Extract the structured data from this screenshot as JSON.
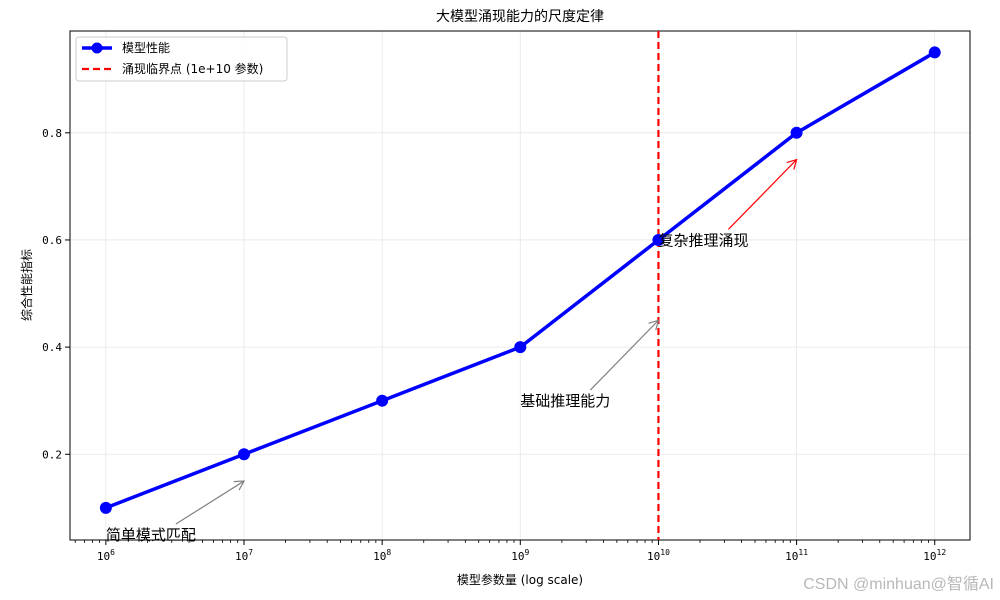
{
  "chart_data": {
    "type": "line",
    "title": "大模型涌现能力的尺度定律",
    "xlabel": "模型参数量 (log scale)",
    "ylabel": "综合性能指标",
    "x_scale": "log",
    "x": [
      1000000,
      10000000,
      100000000,
      1000000000,
      10000000000,
      100000000000,
      1000000000000
    ],
    "x_ticks": [
      {
        "base": "10",
        "exp": "6"
      },
      {
        "base": "10",
        "exp": "7"
      },
      {
        "base": "10",
        "exp": "8"
      },
      {
        "base": "10",
        "exp": "9"
      },
      {
        "base": "10",
        "exp": "10"
      },
      {
        "base": "10",
        "exp": "11"
      },
      {
        "base": "10",
        "exp": "12"
      }
    ],
    "y_ticks": [
      "0.2",
      "0.4",
      "0.6",
      "0.8"
    ],
    "xlim": [
      550000,
      1800000000000
    ],
    "ylim": [
      0.04,
      0.99
    ],
    "grid": true,
    "legend_position": "top-left",
    "series": [
      {
        "name": "模型性能",
        "color": "#0000ff",
        "marker": "circle",
        "values": [
          0.1,
          0.2,
          0.3,
          0.4,
          0.6,
          0.8,
          0.95
        ]
      }
    ],
    "vline": {
      "x": 10000000000,
      "label": "涌现临界点 (1e+10 参数)",
      "color": "#ff0000",
      "style": "dashed"
    },
    "annotations": [
      {
        "text": "简单模式匹配",
        "text_x": 1000000,
        "text_y": 0.04,
        "arrow_x": 10000000,
        "arrow_y": 0.15,
        "color": "#808080"
      },
      {
        "text": "基础推理能力",
        "text_x": 1000000000,
        "text_y": 0.29,
        "arrow_x": 10000000000,
        "arrow_y": 0.45,
        "color": "#808080"
      },
      {
        "text": "复杂推理涌现",
        "text_x": 10000000000,
        "text_y": 0.59,
        "arrow_x": 100000000000,
        "arrow_y": 0.75,
        "color": "#ff0000"
      }
    ]
  },
  "watermark": "CSDN @minhuan@智循AI"
}
